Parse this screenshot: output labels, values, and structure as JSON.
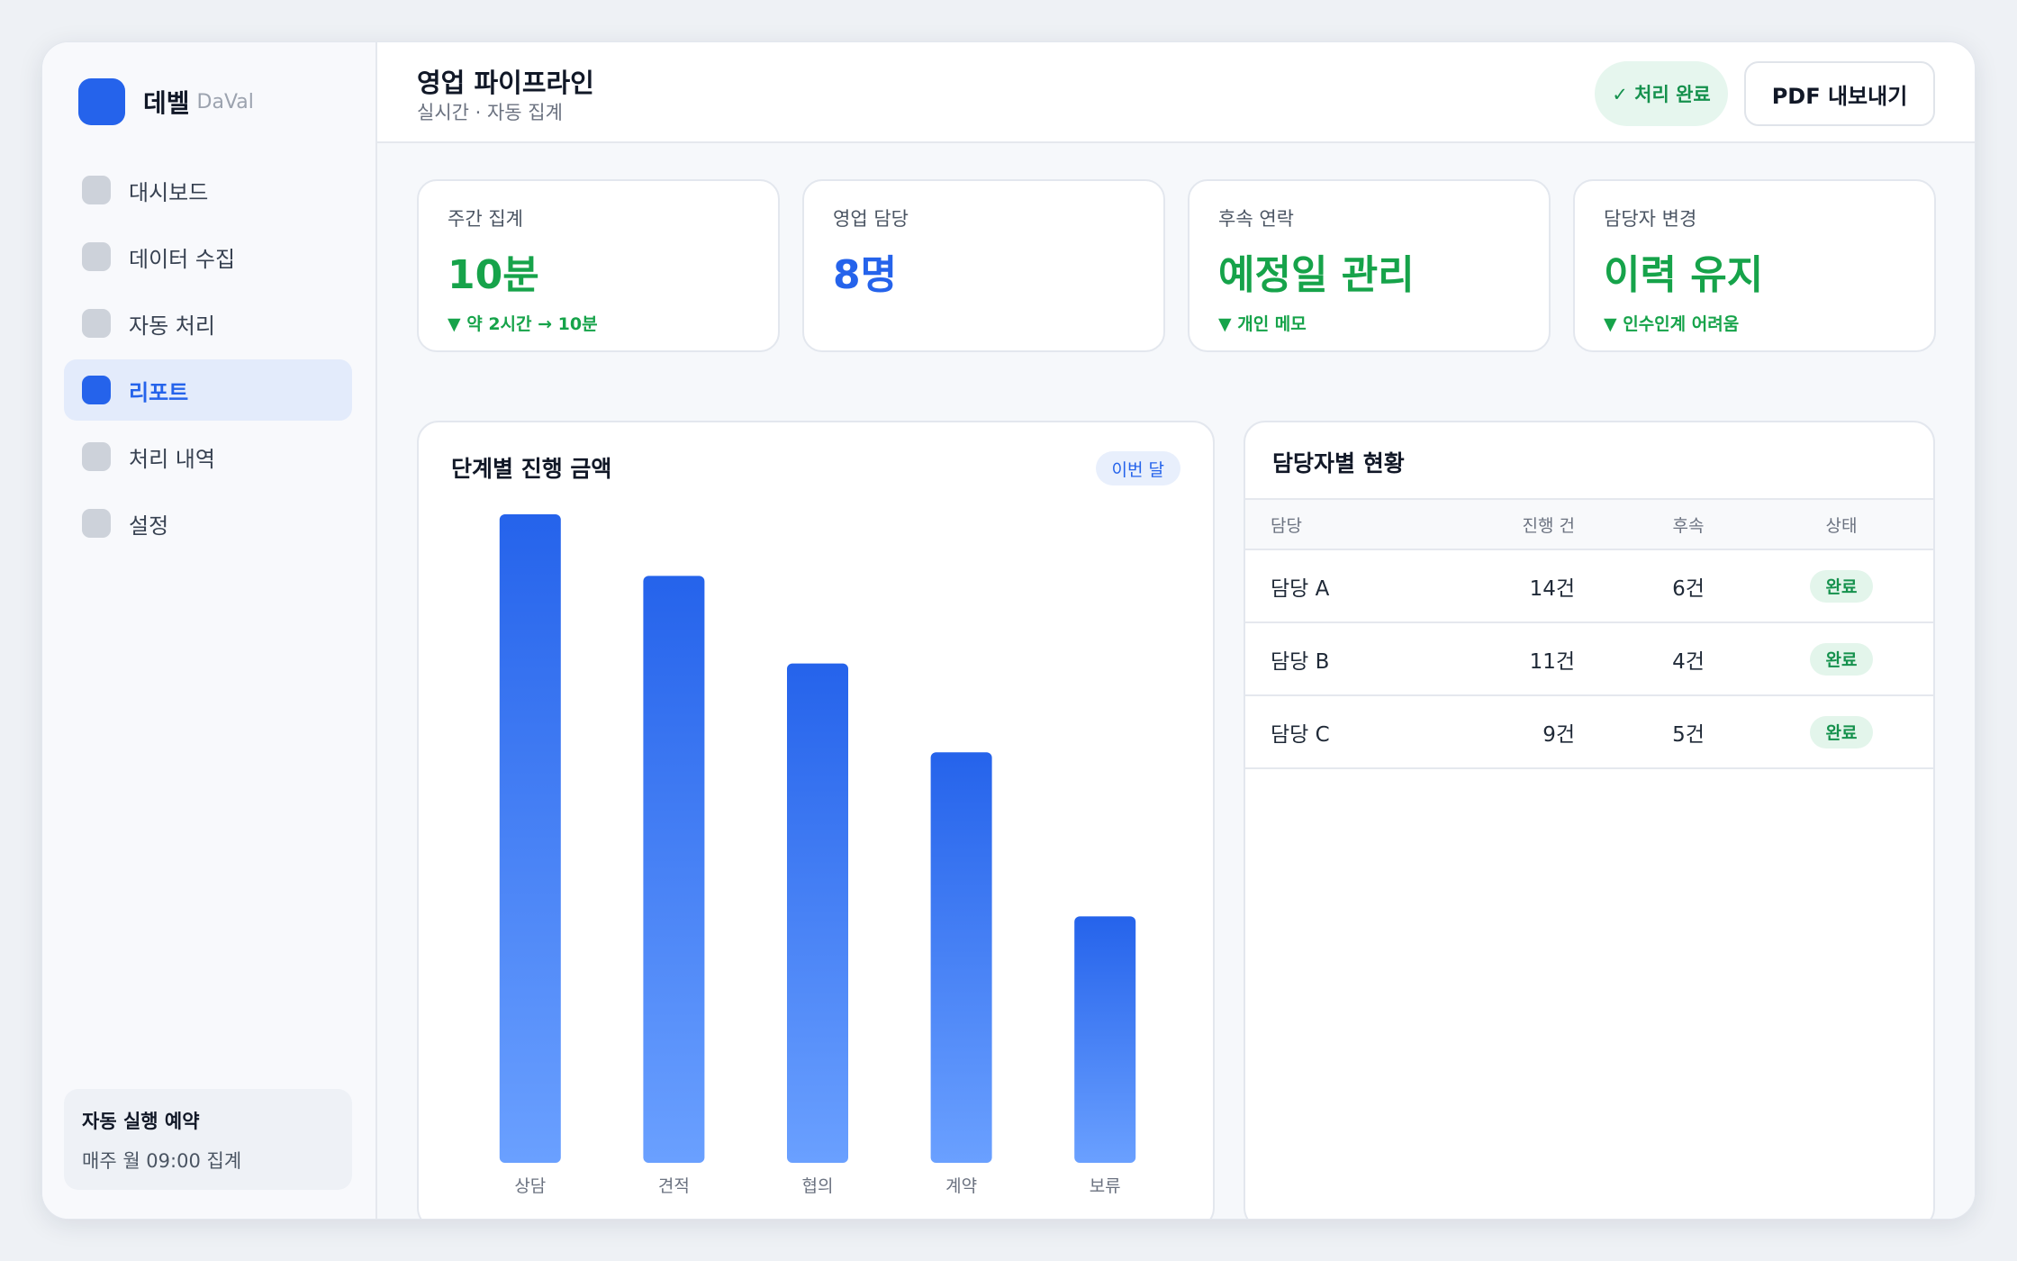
{
  "brand": {
    "name": "데벨",
    "sub": "DaVal"
  },
  "sidebar": {
    "items": [
      {
        "label": "대시보드",
        "active": false
      },
      {
        "label": "데이터 수집",
        "active": false
      },
      {
        "label": "자동 처리",
        "active": false
      },
      {
        "label": "리포트",
        "active": true
      },
      {
        "label": "처리 내역",
        "active": false
      },
      {
        "label": "설정",
        "active": false
      }
    ],
    "schedule": {
      "title": "자동 실행 예약",
      "desc": "매주 월 09:00 집계"
    }
  },
  "header": {
    "title": "영업 파이프라인",
    "subtitle": "실시간 · 자동 집계",
    "status": "✓ 처리 완료",
    "pdf_button": "PDF 내보내기"
  },
  "kpis": [
    {
      "label": "주간 집계",
      "value": "10분",
      "delta": "▼ 약 2시간 → 10분",
      "color": "#16a34a"
    },
    {
      "label": "영업 담당",
      "value": "8명",
      "delta": "",
      "color": "#2563eb"
    },
    {
      "label": "후속 연락",
      "value": "예정일 관리",
      "delta": "▼ 개인 메모",
      "color": "#16a34a"
    },
    {
      "label": "담당자 변경",
      "value": "이력 유지",
      "delta": "▼ 인수인계 어려움",
      "color": "#16a34a"
    }
  ],
  "chart": {
    "title": "단계별 진행 금액",
    "tag": "이번 달"
  },
  "chart_data": {
    "type": "bar",
    "categories": [
      "상담",
      "견적",
      "협의",
      "계약",
      "보류"
    ],
    "values": [
      100,
      90.5,
      77,
      63.3,
      38
    ],
    "ylim": [
      0,
      100
    ],
    "grid": false,
    "colors": {
      "top": "#2563eb",
      "bottom": "#6aa0ff"
    }
  },
  "table": {
    "title": "담당자별 현황",
    "headers": {
      "name": "담당",
      "progress": "진행 건",
      "follow": "후속",
      "state": "상태"
    },
    "rows": [
      {
        "name": "담당 A",
        "progress": "14건",
        "follow": "6건",
        "state": "완료"
      },
      {
        "name": "담당 B",
        "progress": "11건",
        "follow": "4건",
        "state": "완료"
      },
      {
        "name": "담당 C",
        "progress": "9건",
        "follow": "5건",
        "state": "완료"
      }
    ]
  }
}
